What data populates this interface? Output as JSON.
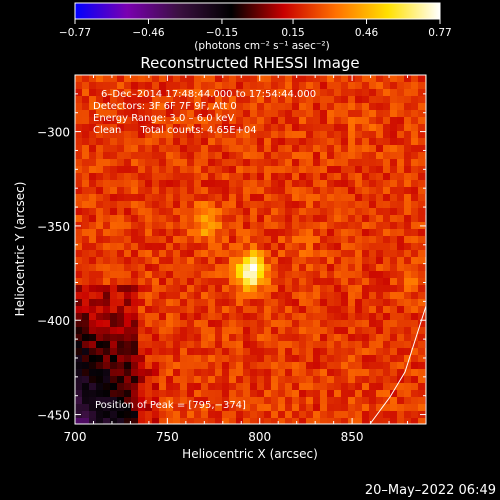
{
  "chart_data": {
    "type": "heatmap",
    "title": "Reconstructed RHESSI Image",
    "xlabel": "Heliocentric X (arcsec)",
    "ylabel": "Heliocentric Y (arcsec)",
    "xlim": [
      700,
      890
    ],
    "ylim": [
      -455,
      -270
    ],
    "xticks": [
      "700",
      "750",
      "800",
      "850"
    ],
    "xtick_values": [
      700,
      750,
      800,
      850
    ],
    "yticks": [
      "−300",
      "−350",
      "−400",
      "−450"
    ],
    "ytick_values": [
      -300,
      -350,
      -400,
      -450
    ],
    "colorbar": {
      "min": -0.77,
      "max": 0.77,
      "ticks": [
        "−0.77",
        "−0.46",
        "−0.15",
        "0.15",
        "0.46",
        "0.77"
      ],
      "tick_values": [
        -0.77,
        -0.46,
        -0.15,
        0.15,
        0.46,
        0.77
      ],
      "unit_label": "(photons cm⁻² s⁻¹ asec⁻²)",
      "colormap": [
        "#0000ff",
        "#7a00b0",
        "#3a1040",
        "#000000",
        "#c80000",
        "#ff7000",
        "#ffe000",
        "#ffffff"
      ]
    },
    "info_lines": [
      "6–Dec–2014 17:48:44.000 to 17:54:44.000",
      "Detectors: 3F 6F 7F 9F, Att 0",
      "Energy Range: 3.0 – 6.0 keV",
      "Clean      Total counts: 4.65E+04"
    ],
    "peak_label": "Position of Peak = [795,−374]",
    "sources": [
      {
        "x": 795,
        "y": -374,
        "intensity": 0.77
      },
      {
        "x": 772,
        "y": -349,
        "intensity": 0.45
      },
      {
        "x": 822,
        "y": -355,
        "intensity": 0.3
      },
      {
        "x": 855,
        "y": -300,
        "intensity": 0.28
      },
      {
        "x": 885,
        "y": -375,
        "intensity": 0.3
      }
    ],
    "background_level": 0.22
  },
  "footer": {
    "timestamp": "20–May–2022 06:49"
  }
}
